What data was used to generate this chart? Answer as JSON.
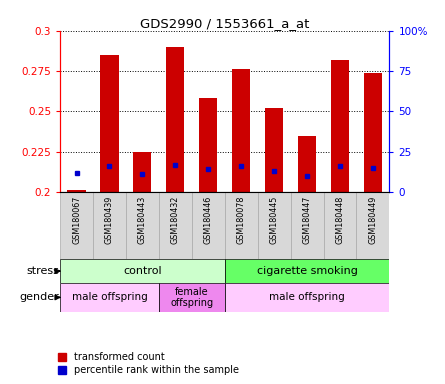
{
  "title": "GDS2990 / 1553661_a_at",
  "samples": [
    "GSM180067",
    "GSM180439",
    "GSM180443",
    "GSM180432",
    "GSM180446",
    "GSM180078",
    "GSM180445",
    "GSM180447",
    "GSM180448",
    "GSM180449"
  ],
  "red_values": [
    0.201,
    0.285,
    0.225,
    0.29,
    0.258,
    0.276,
    0.252,
    0.235,
    0.282,
    0.274
  ],
  "blue_values": [
    0.212,
    0.216,
    0.211,
    0.217,
    0.214,
    0.216,
    0.213,
    0.21,
    0.216,
    0.215
  ],
  "ymin": 0.2,
  "ymax": 0.3,
  "yticks": [
    0.2,
    0.225,
    0.25,
    0.275,
    0.3
  ],
  "right_yticks": [
    0,
    25,
    50,
    75,
    100
  ],
  "bar_color": "#cc0000",
  "blue_color": "#0000cc",
  "stress_control_cols": [
    0,
    1,
    2,
    3,
    4
  ],
  "stress_smoking_cols": [
    5,
    6,
    7,
    8,
    9
  ],
  "gender_male1_cols": [
    0,
    1,
    2
  ],
  "gender_female_cols": [
    3,
    4
  ],
  "gender_male2_cols": [
    5,
    6,
    7,
    8,
    9
  ],
  "control_color": "#ccffcc",
  "smoking_color": "#66ff66",
  "male_color": "#ffccff",
  "female_color": "#ee88ee",
  "stress_label": "stress",
  "gender_label": "gender",
  "control_text": "control",
  "smoking_text": "cigarette smoking",
  "male_text": "male offspring",
  "female_text": "female\noffspring",
  "legend_red": "transformed count",
  "legend_blue": "percentile rank within the sample"
}
